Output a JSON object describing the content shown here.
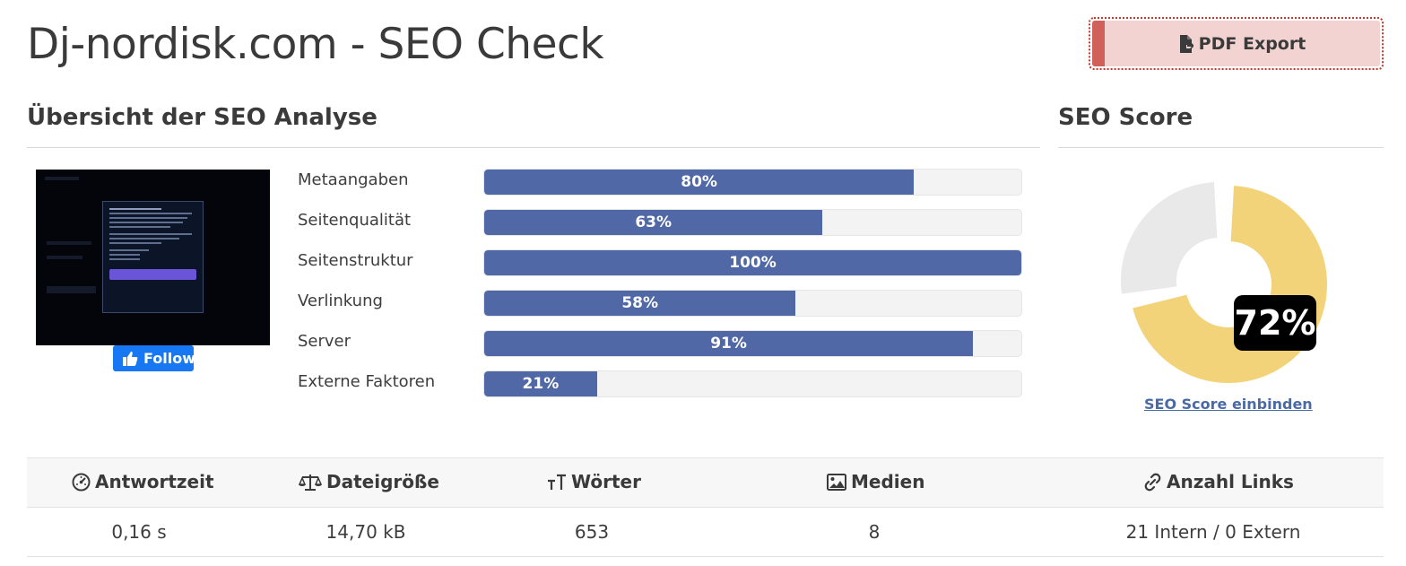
{
  "page": {
    "title": "Dj-nordisk.com - SEO Check"
  },
  "toolbar": {
    "pdf_label": "PDF Export",
    "pdf_icon": "file-export-icon"
  },
  "overview": {
    "heading": "Übersicht der SEO Analyse",
    "follow_label": "Follow",
    "bars": [
      {
        "label": "Metaangaben",
        "value": 80,
        "display": "80%"
      },
      {
        "label": "Seitenqualität",
        "value": 63,
        "display": "63%"
      },
      {
        "label": "Seitenstruktur",
        "value": 100,
        "display": "100%"
      },
      {
        "label": "Verlinkung",
        "value": 58,
        "display": "58%"
      },
      {
        "label": "Server",
        "value": 91,
        "display": "91%"
      },
      {
        "label": "Externe Faktoren",
        "value": 21,
        "display": "21%"
      }
    ]
  },
  "score": {
    "heading": "SEO Score",
    "value": 72,
    "display": "72%",
    "link_label": "SEO Score einbinden",
    "colors": {
      "score": "#f3d37a",
      "remaining": "#e9e9e9"
    }
  },
  "stats": {
    "headers": [
      {
        "label": "Antwortzeit",
        "icon": "gauge-icon"
      },
      {
        "label": "Dateigröße",
        "icon": "balance-scale-icon"
      },
      {
        "label": "Wörter",
        "icon": "text-height-icon"
      },
      {
        "label": "Medien",
        "icon": "image-icon"
      },
      {
        "label": "Anzahl Links",
        "icon": "link-icon"
      }
    ],
    "values": [
      "0,16 s",
      "14,70 kB",
      "653",
      "8",
      "21 Intern / 0 Extern"
    ]
  },
  "colors": {
    "bar_fill": "#5068a5",
    "accent_red": "#d0605a",
    "link": "#4a6aa5"
  }
}
